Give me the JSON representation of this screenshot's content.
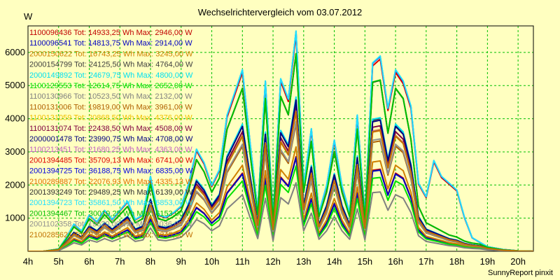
{
  "chart_data": {
    "type": "line",
    "title": "Wechselrichtervergleich vom 03.07.2012",
    "ylabel": "W",
    "footer": "SunnyReport pinxit",
    "xlim": [
      4,
      20.5
    ],
    "ylim": [
      0,
      6800
    ],
    "x_ticks": [
      {
        "value": 4,
        "label": "4h"
      },
      {
        "value": 5,
        "label": "5h"
      },
      {
        "value": 6,
        "label": "6h"
      },
      {
        "value": 7,
        "label": "7h"
      },
      {
        "value": 8,
        "label": "8h"
      },
      {
        "value": 9,
        "label": "9h"
      },
      {
        "value": 10,
        "label": "10h"
      },
      {
        "value": 11,
        "label": "11h"
      },
      {
        "value": 12,
        "label": "12h"
      },
      {
        "value": 13,
        "label": "13h"
      },
      {
        "value": 14,
        "label": "14h"
      },
      {
        "value": 15,
        "label": "15h"
      },
      {
        "value": 16,
        "label": "16h"
      },
      {
        "value": 17,
        "label": "17h"
      },
      {
        "value": 18,
        "label": "18h"
      },
      {
        "value": 19,
        "label": "19h"
      },
      {
        "value": 20,
        "label": "20h"
      }
    ],
    "y_ticks": [
      {
        "value": 1000,
        "label": "1000"
      },
      {
        "value": 2000,
        "label": "2000"
      },
      {
        "value": 3000,
        "label": "3000"
      },
      {
        "value": 4000,
        "label": "4000"
      },
      {
        "value": 5000,
        "label": "5000"
      },
      {
        "value": 6000,
        "label": "6000"
      }
    ],
    "grid": true,
    "legend_position": "top-left",
    "x": [
      4.0,
      4.5,
      5.0,
      5.25,
      5.5,
      5.75,
      6.0,
      6.25,
      6.5,
      6.75,
      7.0,
      7.25,
      7.5,
      7.75,
      8.0,
      8.25,
      8.5,
      8.75,
      9.0,
      9.25,
      9.5,
      9.75,
      10.0,
      10.25,
      10.5,
      10.75,
      11.0,
      11.25,
      11.5,
      11.75,
      12.0,
      12.25,
      12.5,
      12.75,
      13.0,
      13.25,
      13.5,
      13.75,
      14.0,
      14.25,
      14.5,
      14.75,
      15.0,
      15.25,
      15.5,
      15.75,
      16.0,
      16.25,
      16.5,
      16.75,
      17.0,
      17.25,
      17.5,
      17.75,
      18.0,
      18.25,
      18.5,
      18.75,
      19.0,
      19.5,
      20.0,
      20.5
    ],
    "profile": [
      0,
      0,
      0.01,
      0.06,
      0.12,
      0.09,
      0.16,
      0.13,
      0.18,
      0.14,
      0.18,
      0.22,
      0.14,
      0.16,
      0.33,
      0.16,
      0.15,
      0.17,
      0.2,
      0.3,
      0.45,
      0.39,
      0.29,
      0.36,
      0.6,
      0.7,
      0.8,
      0.48,
      0.18,
      0.75,
      0.15,
      0.76,
      0.67,
      0.97,
      0.29,
      0.54,
      0.17,
      0.29,
      0.49,
      0.29,
      0.17,
      0.6,
      0.16,
      0.83,
      0.84,
      0.58,
      0.8,
      0.75,
      0.55,
      0.22,
      0.14,
      0.12,
      0.1,
      0.08,
      0.07,
      0.05,
      0.04,
      0.035,
      0.02,
      0.008,
      0.002,
      0
    ],
    "profile_late": [
      0,
      0,
      0.01,
      0.06,
      0.12,
      0.09,
      0.16,
      0.13,
      0.18,
      0.14,
      0.18,
      0.22,
      0.14,
      0.16,
      0.33,
      0.16,
      0.15,
      0.17,
      0.2,
      0.3,
      0.45,
      0.39,
      0.29,
      0.36,
      0.6,
      0.7,
      0.8,
      0.48,
      0.18,
      0.75,
      0.15,
      0.76,
      0.67,
      0.97,
      0.29,
      0.54,
      0.17,
      0.29,
      0.49,
      0.29,
      0.17,
      0.6,
      0.16,
      0.83,
      0.86,
      0.63,
      0.8,
      0.75,
      0.64,
      0.3,
      0.24,
      0.4,
      0.33,
      0.3,
      0.27,
      0.15,
      0.06,
      0.04,
      0.02,
      0.008,
      0.002,
      0
    ],
    "series": [
      {
        "name": "1100096436",
        "legend": "1100096436 Tot: 14933,25 Wh Max: 2946,00 W",
        "color": "#c00000",
        "max": 2946
      },
      {
        "name": "1100096541",
        "legend": "1100096541 Tot: 14813,75 Wh Max: 2914,00 W",
        "color": "#0000c0",
        "max": 2914
      },
      {
        "name": "2000150622",
        "legend": "2000150622 Tot: 16743,25 Wh Max: 3245,00 W",
        "color": "#d08000",
        "max": 3245
      },
      {
        "name": "2000154799",
        "legend": "2000154799 Tot: 24125,50 Wh Max: 4764,00 W",
        "color": "#404040",
        "max": 4764
      },
      {
        "name": "2000149892",
        "legend": "2000149892 Tot: 24679,75 Wh Max: 4800,00 W",
        "color": "#00e0f0",
        "max": 4800
      },
      {
        "name": "1100129553",
        "legend": "1100129553 Tot: 12614,75 Wh Max: 2652,00 W",
        "color": "#00e000",
        "max": 2652
      },
      {
        "name": "1100130966",
        "legend": "1100130966 Tot: 10523,50 Wh Max: 2132,00 W",
        "color": "#808080",
        "max": 2132
      },
      {
        "name": "1100131006",
        "legend": "1100131006 Tot: 19819,00 Wh Max: 3961,00 W",
        "color": "#b06000",
        "max": 3961
      },
      {
        "name": "1100131059",
        "legend": "1100131059 Tot: 20868,50 Wh Max: 4376,00 W",
        "color": "#f0c000",
        "max": 4376
      },
      {
        "name": "1100131074",
        "legend": "1100131074 Tot: 22438,50 Wh Max: 4508,00 W",
        "color": "#800040",
        "max": 4508
      },
      {
        "name": "2000001478",
        "legend": "2000001478 Tot: 23990,75 Wh Max: 4708,00 W",
        "color": "#000080",
        "max": 4708
      },
      {
        "name": "1100213451",
        "legend": "1100213451 Tot: 21680,25 Wh Max: 4363,00 W",
        "color": "#c060c0",
        "max": 4363
      },
      {
        "name": "2001394485",
        "legend": "2001394485 Tot: 35709,13 Wh Max: 6741,00 W",
        "color": "#e00000",
        "max": 6741,
        "late": true
      },
      {
        "name": "2001394725",
        "legend": "2001394725 Tot: 36188,75 Wh Max: 6835,00 W",
        "color": "#0000e0",
        "max": 6835,
        "late": true
      },
      {
        "name": "2100289887",
        "legend": "2100289887 Tot: 22076,93 Wh Max: 4335,13 W",
        "color": "#e07000",
        "max": 4335
      },
      {
        "name": "2001393249",
        "legend": "2001393249 Tot: 29489,25 Wh Max: 6139,00 W",
        "color": "#303030",
        "max": 6139
      },
      {
        "name": "2001394723",
        "legend": "2001394723 Tot: 35861,50 Wh Max: 6853,00 W",
        "color": "#20e0ff",
        "max": 6853,
        "late": true
      },
      {
        "name": "2001394467",
        "legend": "2001394467 Tot: 30019,25 Wh Max: 6153,00 W",
        "color": "#00c000",
        "max": 6153
      },
      {
        "name": "2001102358",
        "legend": "2001102358 Tot: 19620,00 Wh Max: 4036,00 W",
        "color": "#909090",
        "max": 4036
      },
      {
        "name": "2100285621",
        "legend": "2100285621 Tot: 23683,30 Wh Max: 4345,50 W",
        "color": "#c07000",
        "max": 4345
      }
    ]
  }
}
